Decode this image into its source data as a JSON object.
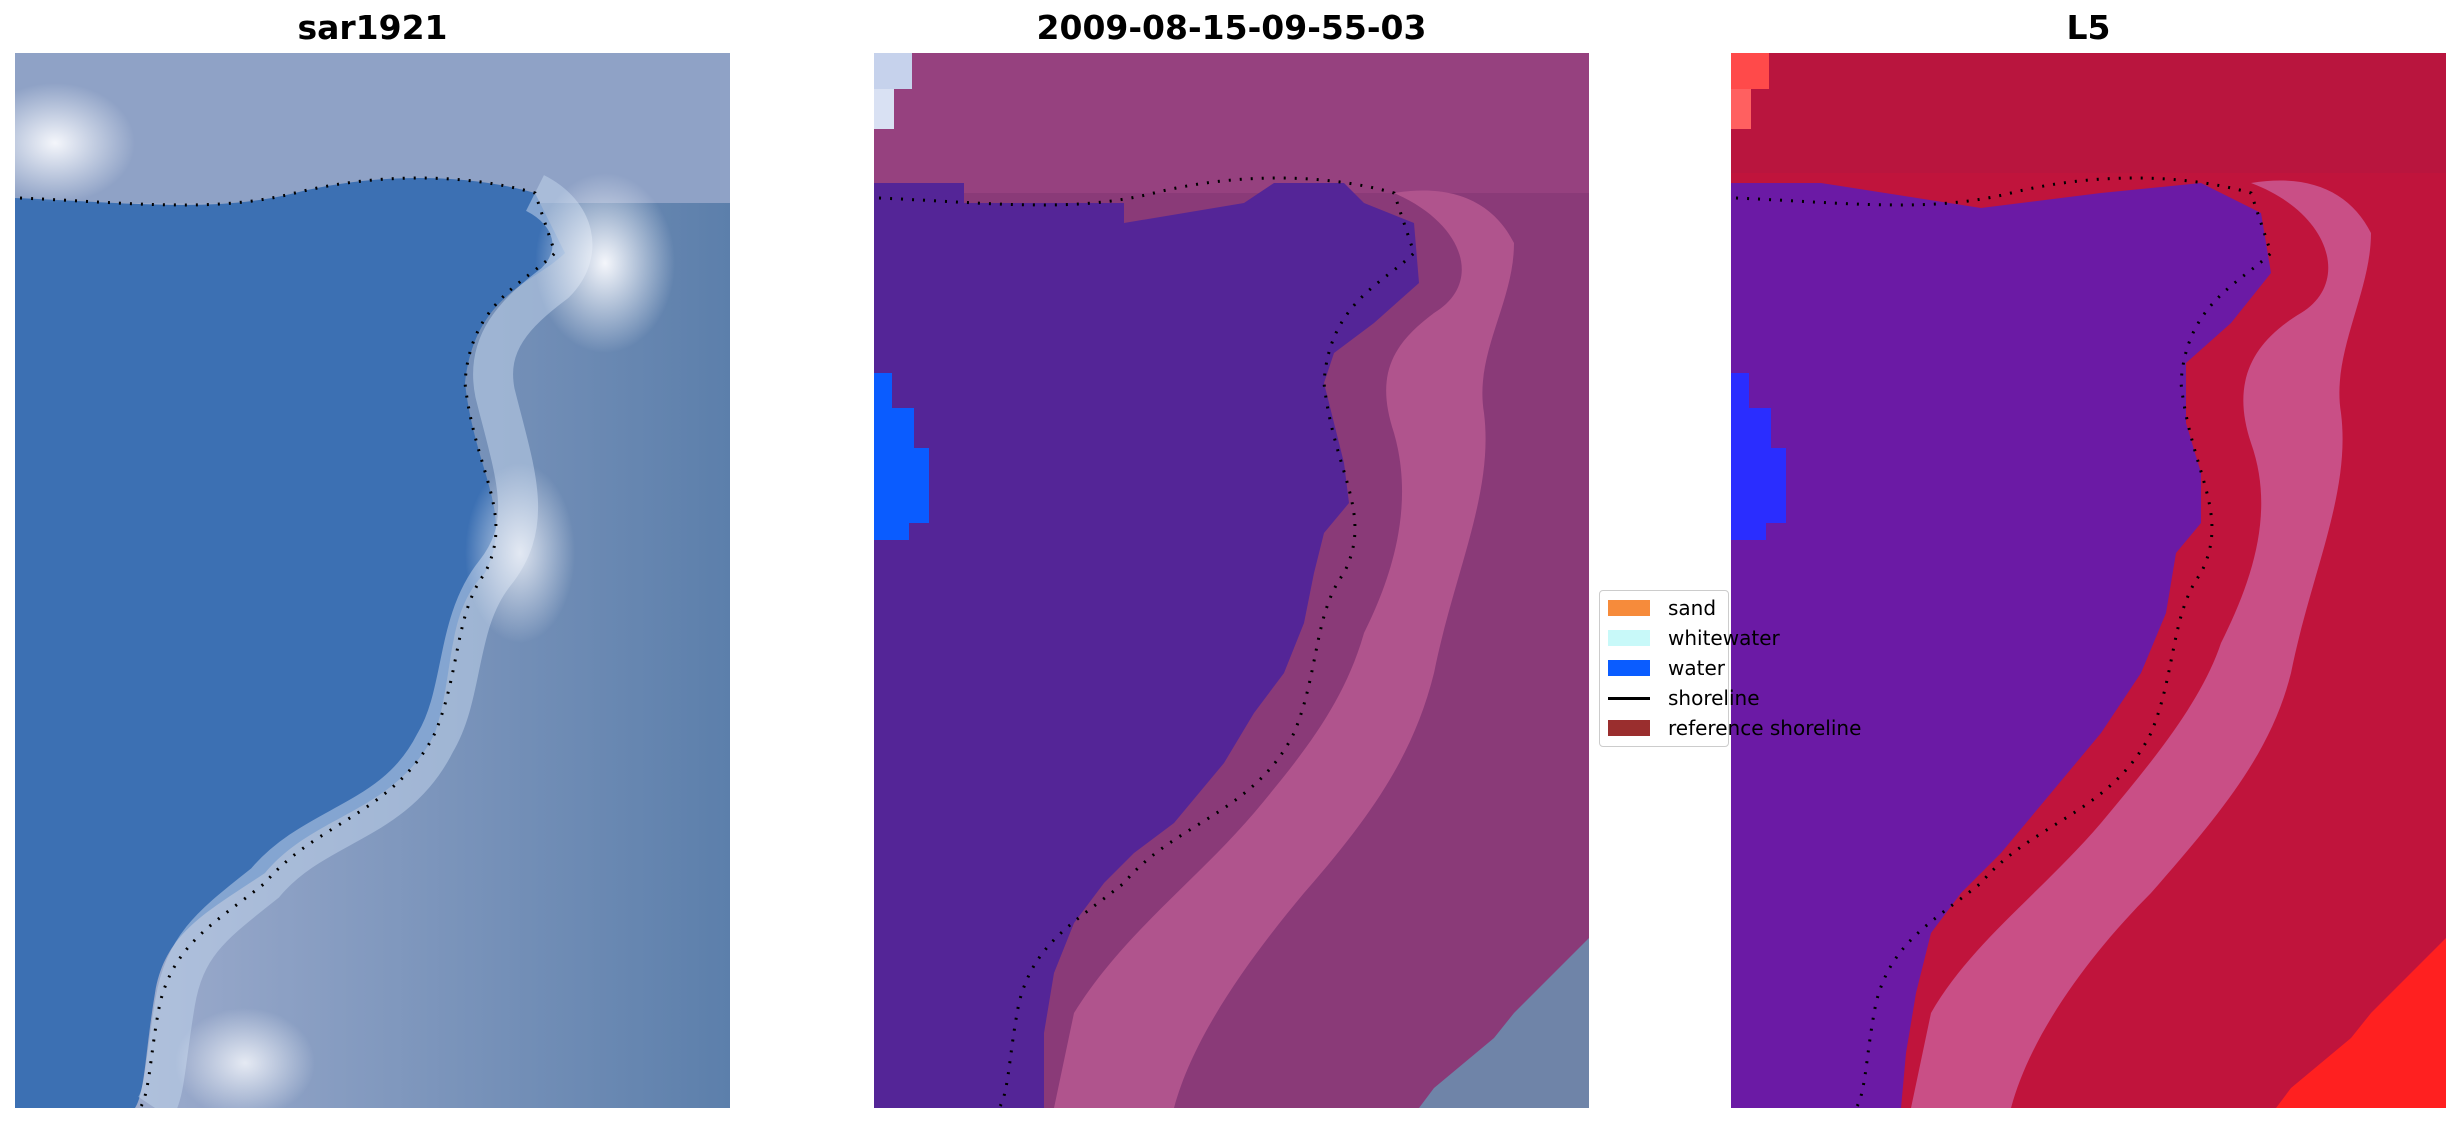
{
  "panels": [
    {
      "title": "sar1921"
    },
    {
      "title": "2009-08-15-09-55-03"
    },
    {
      "title": "L5"
    }
  ],
  "legend": {
    "items": [
      {
        "label": "sand",
        "color": "#f68b3b"
      },
      {
        "label": "whitewater",
        "color": "#c8f9f9"
      },
      {
        "label": "water",
        "color": "#0a5cff"
      },
      {
        "label": "shoreline",
        "color": "#000000"
      },
      {
        "label": "reference shoreline",
        "color": "#9a2e2e"
      }
    ]
  },
  "colors": {
    "rgb_water": "#3d71b4",
    "rgb_land": "#6a8ab4",
    "rgb_whitewater": "#eef3fb",
    "class_water_fill": "#542597",
    "class_land": "#8a3a78",
    "class_land_light": "#b5548f",
    "mndwi_water": "#6a18a3",
    "mndwi_land": "#c0143c",
    "mndwi_bright": "#ff2222"
  }
}
